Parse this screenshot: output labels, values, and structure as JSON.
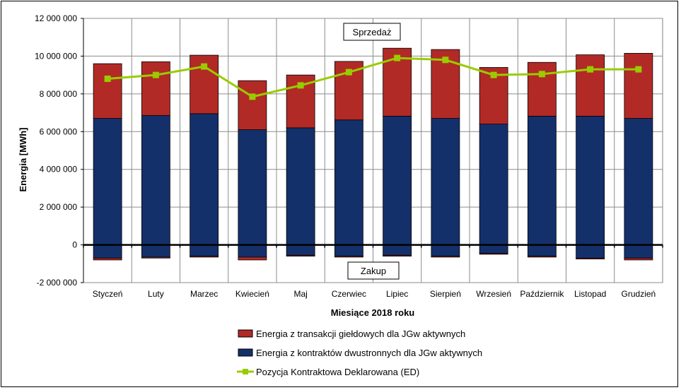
{
  "chart_data": {
    "type": "bar",
    "ylabel": "Energia [MWh]",
    "xlabel": "Miesiące 2018  roku",
    "ylim": [
      -2000000,
      12000000
    ],
    "yticks": [
      -2000000,
      0,
      2000000,
      4000000,
      6000000,
      8000000,
      10000000,
      12000000
    ],
    "ytick_labels": [
      "-2 000 000",
      "0",
      "2 000 000",
      "4 000 000",
      "6 000 000",
      "8 000 000",
      "10 000 000",
      "12 000 000"
    ],
    "grid": true,
    "legend_position": "bottom",
    "annotations": {
      "upper": "Sprzedaż",
      "lower": "Zakup"
    },
    "categories": [
      "Styczeń",
      "Luty",
      "Marzec",
      "Kwiecień",
      "Maj",
      "Czerwiec",
      "Lipiec",
      "Sierpień",
      "Wrzesień",
      "Październik",
      "Listopad",
      "Grudzień"
    ],
    "series": [
      {
        "name": "Energia z transakcji giełdowych dla JGw aktywnych",
        "color": "#b22a26",
        "type": "bar",
        "positive": [
          2900000,
          2850000,
          3100000,
          2600000,
          2800000,
          3100000,
          3600000,
          3650000,
          3000000,
          2850000,
          3250000,
          3450000
        ],
        "negative": [
          -100000,
          -50000,
          -50000,
          -150000,
          -50000,
          -50000,
          -50000,
          -50000,
          -50000,
          -50000,
          -50000,
          -100000
        ]
      },
      {
        "name": "Energia z kontraktów dwustronnych dla JGw aktywnych",
        "color": "#14306a",
        "type": "bar",
        "positive": [
          6700000,
          6850000,
          6950000,
          6100000,
          6200000,
          6620000,
          6820000,
          6700000,
          6400000,
          6820000,
          6820000,
          6700000
        ],
        "negative": [
          -700000,
          -650000,
          -600000,
          -650000,
          -550000,
          -600000,
          -550000,
          -600000,
          -450000,
          -600000,
          -700000,
          -700000
        ]
      },
      {
        "name": "Pozycja Kontraktowa Deklarowana (ED)",
        "color": "#99cc00",
        "type": "line",
        "values": [
          8800000,
          9000000,
          9450000,
          7850000,
          8450000,
          9150000,
          9900000,
          9800000,
          9000000,
          9050000,
          9300000,
          9300000
        ]
      }
    ]
  }
}
